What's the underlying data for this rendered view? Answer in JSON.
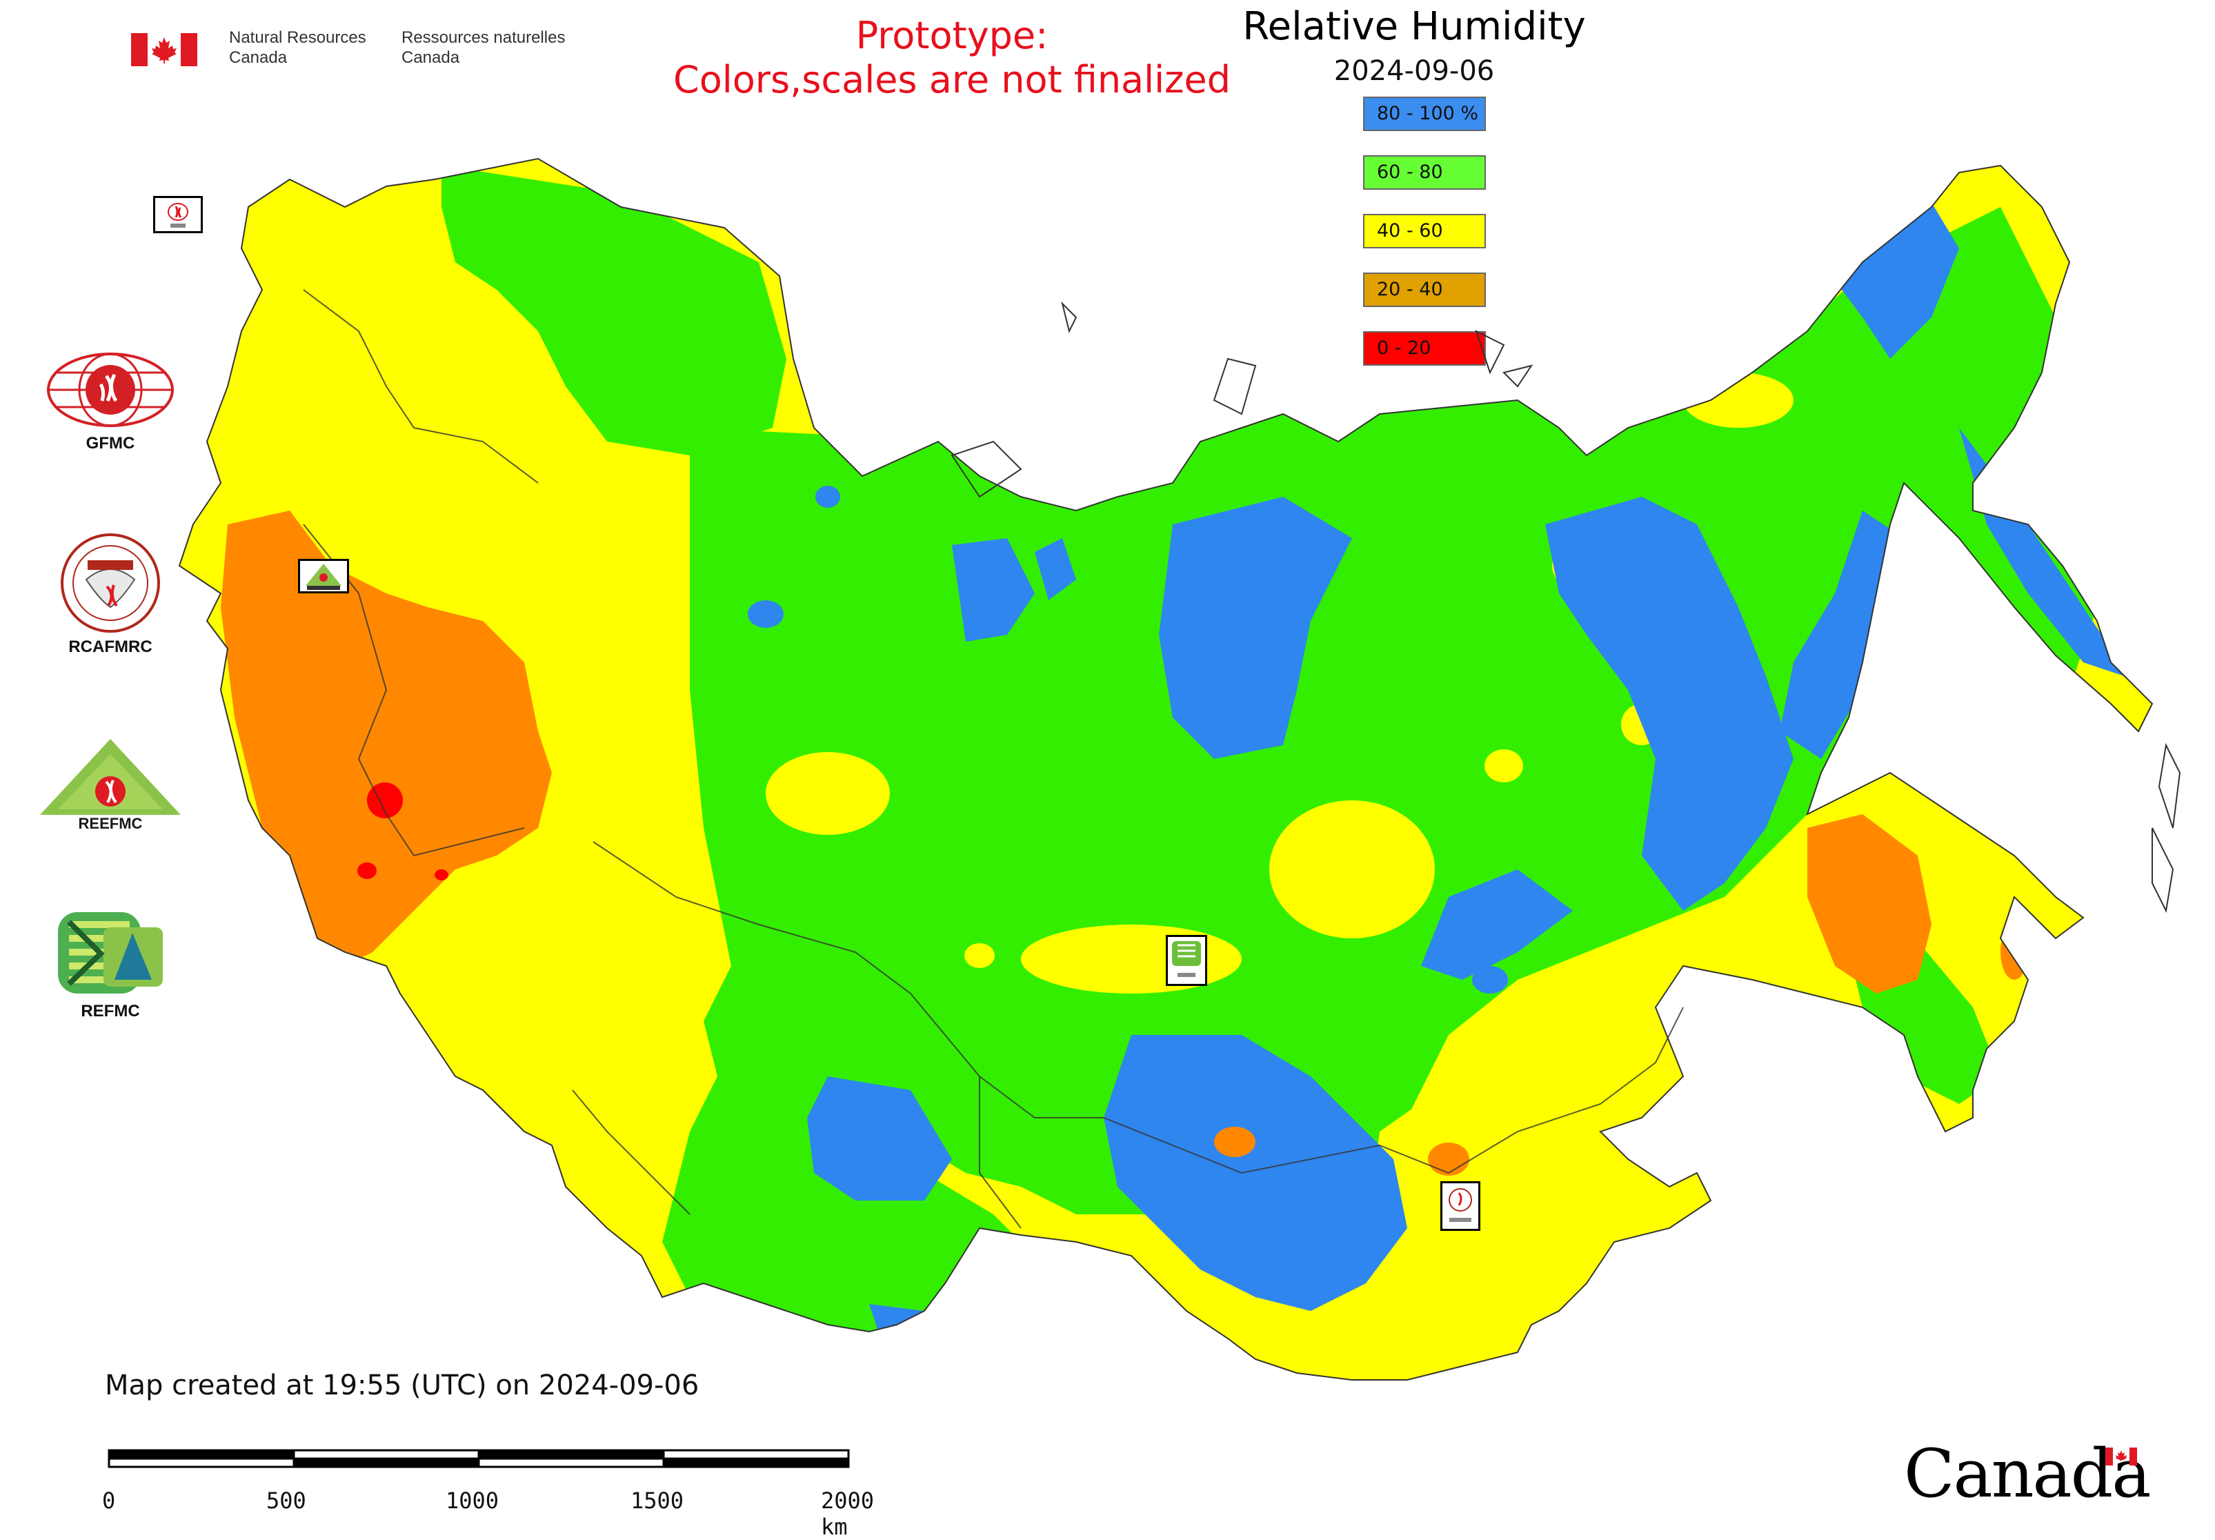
{
  "header": {
    "org_en_line1": "Natural Resources",
    "org_en_line2": "Canada",
    "org_fr_line1": "Ressources naturelles",
    "org_fr_line2": "Canada",
    "prototype_line1": "Prototype:",
    "prototype_line2": "Colors,scales are not finalized",
    "title": "Relative Humidity",
    "date": "2024-09-06"
  },
  "legend": [
    {
      "label": "80 - 100 %",
      "color": "#3c8df0"
    },
    {
      "label": "60 - 80",
      "color": "#66ff33"
    },
    {
      "label": "40 - 60",
      "color": "#ffff00"
    },
    {
      "label": "20 - 40",
      "color": "#e0a000"
    },
    {
      "label": "0 - 20",
      "color": "#ff0000"
    }
  ],
  "map_colors": {
    "blue": "#2f86ee",
    "green": "#33ee00",
    "yellow": "#ffff00",
    "orange": "#ff8800",
    "red": "#ff0000",
    "border": "#333333"
  },
  "side_logos": [
    {
      "caption": "GFMC"
    },
    {
      "caption": "RCAFMRC"
    },
    {
      "caption": ""
    },
    {
      "caption": "REFMC"
    }
  ],
  "footer": {
    "created": "Map created at 19:55 (UTC) on 2024-09-06",
    "scale_ticks": [
      "0",
      "500",
      "1000",
      "1500",
      "2000 km"
    ],
    "wordmark": "Canada"
  }
}
